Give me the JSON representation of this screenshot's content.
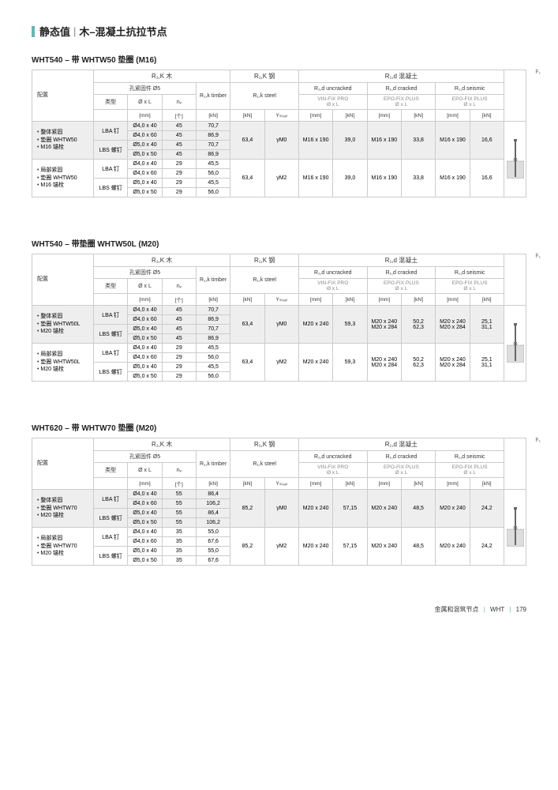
{
  "pageTitle": {
    "a": "静态值",
    "b": "木–混凝土抗拉节点"
  },
  "footer": {
    "left": "金属和混筑节点",
    "mid": "WHT",
    "page": "179"
  },
  "sections": [
    {
      "title": "WHT540 – 带 WHTW50 垫圈 (M16)",
      "headerGroups": {
        "wood": "R₁,K 木",
        "steel": "R₁,K 钢",
        "concrete": "R₁,d 混凝土"
      },
      "subHeaders": {
        "fastener": "孔紧固件 Ø5",
        "timber": "R₁,k timber",
        "steelH": "R₁,k steel",
        "uncracked": "R₁,d uncracked",
        "cracked": "R₁,d cracked",
        "seismic": "R₁,d seismic"
      },
      "cfgLabel": "配置",
      "typeLabel": "类型",
      "dimLabel": "Ø x L",
      "nvLabel": "nᵥ",
      "knLabel": "[kN]",
      "mmLabel": "[mm]",
      "countLabel": "[个]",
      "gammaLabel": "Yₛₜₑₑₗ",
      "resin1": "VIN-FIX PRO",
      "resin2": "EPO-FIX PLUS",
      "resin3": "EPO-FIX PLUS",
      "dimSub": "Ø x L",
      "f1Label": "F₁",
      "blocks": [
        {
          "hl": true,
          "cfg": [
            "整体紧固",
            "垫圈 WHTW50",
            "M16 锚栓"
          ],
          "types": [
            "LBA 钉",
            "LBS 螺钉"
          ],
          "rows": [
            [
              "Ø4,0 x 40",
              "45",
              "70,7"
            ],
            [
              "Ø4,0 x 60",
              "45",
              "86,9"
            ],
            [
              "Ø5,0 x 40",
              "45",
              "70,7"
            ],
            [
              "Ø5,0 x 50",
              "45",
              "86,9"
            ]
          ],
          "steel": [
            "63,4",
            "γM0"
          ],
          "uncr": [
            "M16 x 190",
            "39,0"
          ],
          "cr": [
            "M16 x 190",
            "33,8"
          ],
          "seis": [
            "M16 x 190",
            "16,6"
          ]
        },
        {
          "hl": false,
          "cfg": [
            "局部紧固",
            "垫圈 WHTW50",
            "M16 锚栓"
          ],
          "types": [
            "LBA 钉",
            "LBS 螺钉"
          ],
          "rows": [
            [
              "Ø4,0 x 40",
              "29",
              "45,5"
            ],
            [
              "Ø4,0 x 60",
              "29",
              "56,0"
            ],
            [
              "Ø5,0 x 40",
              "29",
              "45,5"
            ],
            [
              "Ø5,0 x 50",
              "29",
              "56,0"
            ]
          ],
          "steel": [
            "63,4",
            "γM2"
          ],
          "uncr": [
            "M16 x 190",
            "39,0"
          ],
          "cr": [
            "M16 x 190",
            "33,8"
          ],
          "seis": [
            "M16 x 190",
            "16,6"
          ]
        }
      ]
    },
    {
      "title": "WHT540 – 带垫圈 WHTW50L (M20)",
      "headerGroups": {
        "wood": "R₁,K 木",
        "steel": "R₁,K 钢",
        "concrete": "R₁,d 混凝土"
      },
      "subHeaders": {
        "fastener": "孔紧固件 Ø5",
        "timber": "R₁,k timber",
        "steelH": "R₁,k steel",
        "uncracked": "R₁,d uncracked",
        "cracked": "R₁,d cracked",
        "seismic": "R₁,d seismic"
      },
      "cfgLabel": "配置",
      "typeLabel": "类型",
      "dimLabel": "Ø x L",
      "nvLabel": "nᵥ",
      "knLabel": "[kN]",
      "mmLabel": "[mm]",
      "countLabel": "[个]",
      "gammaLabel": "Yₛₜₑₑₗ",
      "resin1": "VIN-FIX PRO",
      "resin2": "EPO-FIX PLUS",
      "resin3": "EPO-FIX PLUS",
      "dimSub": "Ø x L",
      "f1Label": "F₁",
      "blocks": [
        {
          "hl": true,
          "cfg": [
            "整体紧固",
            "垫圈 WHTW50L",
            "M20 锚栓"
          ],
          "types": [
            "LBA 钉",
            "LBS 螺钉"
          ],
          "rows": [
            [
              "Ø4,0 x 40",
              "45",
              "70,7"
            ],
            [
              "Ø4,0 x 60",
              "45",
              "86,9"
            ],
            [
              "Ø5,0 x 40",
              "45",
              "70,7"
            ],
            [
              "Ø5,0 x 50",
              "45",
              "86,9"
            ]
          ],
          "steel": [
            "63,4",
            "γM0"
          ],
          "uncr": [
            "M20 x 240",
            "59,3"
          ],
          "cr2": [
            [
              "M20 x 240",
              "50,2"
            ],
            [
              "M20 x 284",
              "62,3"
            ]
          ],
          "seis2": [
            [
              "M20 x 240",
              "25,1"
            ],
            [
              "M20 x 284",
              "31,1"
            ]
          ]
        },
        {
          "hl": false,
          "cfg": [
            "局部紧固",
            "垫圈 WHTW50L",
            "M20 锚栓"
          ],
          "types": [
            "LBA 钉",
            "LBS 螺钉"
          ],
          "rows": [
            [
              "Ø4,0 x 40",
              "29",
              "45,5"
            ],
            [
              "Ø4,0 x 60",
              "29",
              "56,0"
            ],
            [
              "Ø5,0 x 40",
              "29",
              "45,5"
            ],
            [
              "Ø5,0 x 50",
              "29",
              "56,0"
            ]
          ],
          "steel": [
            "63,4",
            "γM2"
          ],
          "uncr": [
            "M20 x 240",
            "59,3"
          ],
          "cr2": [
            [
              "M20 x 240",
              "50,2"
            ],
            [
              "M20 x 284",
              "62,3"
            ]
          ],
          "seis2": [
            [
              "M20 x 240",
              "25,1"
            ],
            [
              "M20 x 284",
              "31,1"
            ]
          ]
        }
      ]
    },
    {
      "title": "WHT620 – 带 WHTW70 垫圈 (M20)",
      "headerGroups": {
        "wood": "R₁,K 木",
        "steel": "R₁,K 钢",
        "concrete": "R₁,d 混凝土"
      },
      "subHeaders": {
        "fastener": "孔紧固件 Ø5",
        "timber": "R₁,k timber",
        "steelH": "R₁,k steel",
        "uncracked": "R₁,d uncracked",
        "cracked": "R₁,d cracked",
        "seismic": "R₁,d seismic"
      },
      "cfgLabel": "配置",
      "typeLabel": "类型",
      "dimLabel": "Ø x L",
      "nvLabel": "nᵥ",
      "knLabel": "[kN]",
      "mmLabel": "[mm]",
      "countLabel": "[个]",
      "gammaLabel": "Yₛₜₑₑₗ",
      "resin1": "VIN-FIX PRO",
      "resin2": "EPO-FIX PLUS",
      "resin3": "EPO-FIX PLUS",
      "dimSub": "Ø x L",
      "f1Label": "F₁",
      "blocks": [
        {
          "hl": true,
          "cfg": [
            "整体紧固",
            "垫圈 WHTW70",
            "M20 锚栓"
          ],
          "types": [
            "LBA 钉",
            "LBS 螺钉"
          ],
          "rows": [
            [
              "Ø4,0 x 40",
              "55",
              "86,4"
            ],
            [
              "Ø4,0 x 60",
              "55",
              "106,2"
            ],
            [
              "Ø5,0 x 40",
              "55",
              "86,4"
            ],
            [
              "Ø5,0 x 50",
              "55",
              "106,2"
            ]
          ],
          "steel": [
            "85,2",
            "γM0"
          ],
          "uncr": [
            "M20 x 240",
            "57,15"
          ],
          "cr": [
            "M20 x 240",
            "48,5"
          ],
          "seis": [
            "M20 x 240",
            "24,2"
          ]
        },
        {
          "hl": false,
          "cfg": [
            "局部紧固",
            "垫圈 WHTW70",
            "M20 锚栓"
          ],
          "types": [
            "LBA 钉",
            "LBS 螺钉"
          ],
          "rows": [
            [
              "Ø4,0 x 40",
              "35",
              "55,0"
            ],
            [
              "Ø4,0 x 60",
              "35",
              "67,6"
            ],
            [
              "Ø5,0 x 40",
              "35",
              "55,0"
            ],
            [
              "Ø5,0 x 50",
              "35",
              "67,6"
            ]
          ],
          "steel": [
            "85,2",
            "γM2"
          ],
          "uncr": [
            "M20 x 240",
            "57,15"
          ],
          "cr": [
            "M20 x 240",
            "48,5"
          ],
          "seis": [
            "M20 x 240",
            "24,2"
          ]
        }
      ]
    }
  ]
}
